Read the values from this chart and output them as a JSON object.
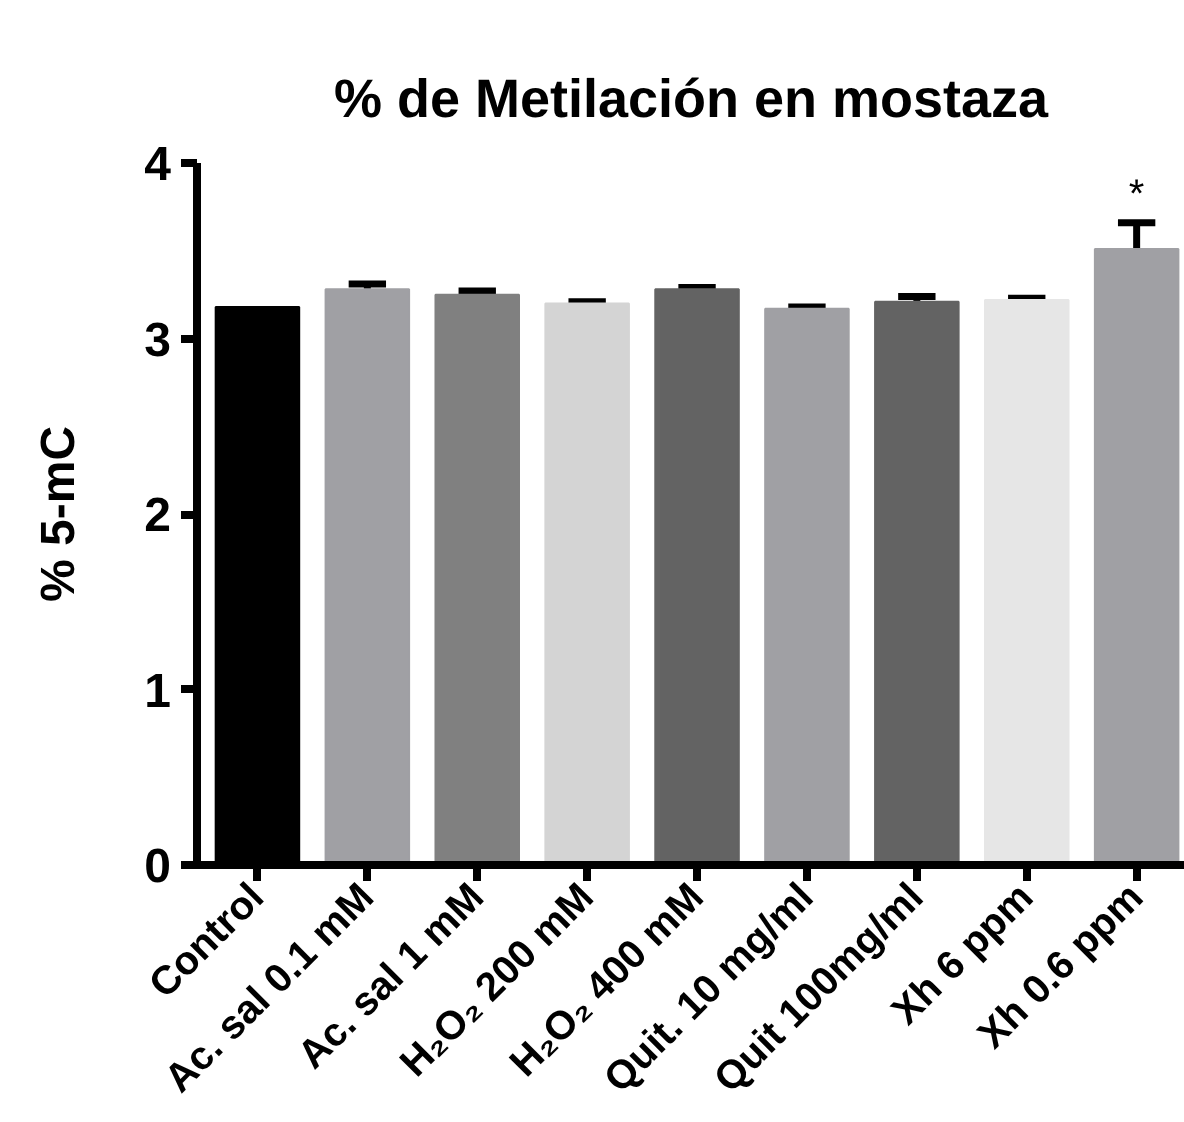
{
  "chart_data": {
    "type": "bar",
    "title": "% de Metilación en mostaza",
    "ylabel": "% 5-mC",
    "categories": [
      "Control",
      "Ac. sal 0.1 mM",
      "Ac. sal 1 mM",
      "H₂O₂ 200 mM",
      "H₂O₂ 400 mM",
      "Quit. 10 mg/ml",
      "Quit 100mg/ml",
      "Xh 6 ppm",
      "Xh 0.6 ppm"
    ],
    "values": [
      3.18,
      3.28,
      3.25,
      3.2,
      3.28,
      3.17,
      3.21,
      3.22,
      3.51
    ],
    "errors": [
      null,
      0.03,
      0.02,
      0.01,
      0.01,
      0.01,
      0.03,
      0.01,
      0.15
    ],
    "colors": [
      "#000000",
      "#a0a0a4",
      "#808080",
      "#d4d4d4",
      "#636363",
      "#a0a0a4",
      "#636363",
      "#e6e6e6",
      "#a0a0a4"
    ],
    "ylim": [
      0,
      4
    ],
    "yticks": [
      0,
      1,
      2,
      3,
      4
    ],
    "annotations": [
      "*"
    ]
  }
}
